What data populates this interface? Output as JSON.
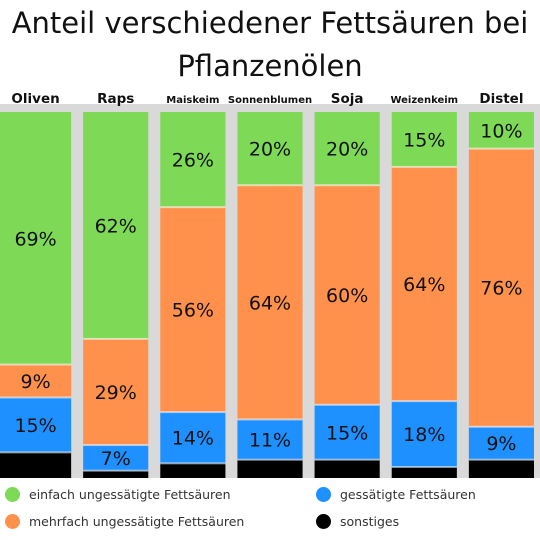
{
  "chart_data": {
    "type": "bar",
    "stacked": true,
    "normalized_percent": true,
    "title": "Anteil verschiedener Fettsäuren bei Pflanzenölen",
    "categories": [
      "Oliven",
      "Raps",
      "Maiskeim",
      "Sonnenblumen",
      "Soja",
      "Weizenkeim",
      "Distel"
    ],
    "series": [
      {
        "name": "einfach ungessätigte Fettsäuren",
        "color": "#7ed957",
        "values": [
          69,
          62,
          26,
          20,
          20,
          15,
          10
        ],
        "labels": [
          "69%",
          "62%",
          "26%",
          "20%",
          "20%",
          "15%",
          "10%"
        ]
      },
      {
        "name": "mehrfach ungessätigte Fettsäuren",
        "color": "#ff914d",
        "values": [
          9,
          29,
          56,
          64,
          60,
          64,
          76
        ],
        "labels": [
          "9%",
          "29%",
          "56%",
          "64%",
          "60%",
          "64%",
          "76%"
        ]
      },
      {
        "name": "gessätigte Fettsäuren",
        "color": "#1e90ff",
        "values": [
          15,
          7,
          14,
          11,
          15,
          18,
          9
        ],
        "labels": [
          "15%",
          "7%",
          "14%",
          "11%",
          "15%",
          "18%",
          "9%"
        ]
      },
      {
        "name": "sonstiges",
        "color": "#000000",
        "values": [
          7,
          2,
          4,
          5,
          5,
          3,
          5
        ],
        "labels": [
          "",
          "",
          "",
          "",
          "",
          "",
          ""
        ]
      }
    ],
    "legend": {
      "position": "bottom"
    },
    "grid": false
  },
  "colors": {
    "separator": "#d9d9d9"
  }
}
